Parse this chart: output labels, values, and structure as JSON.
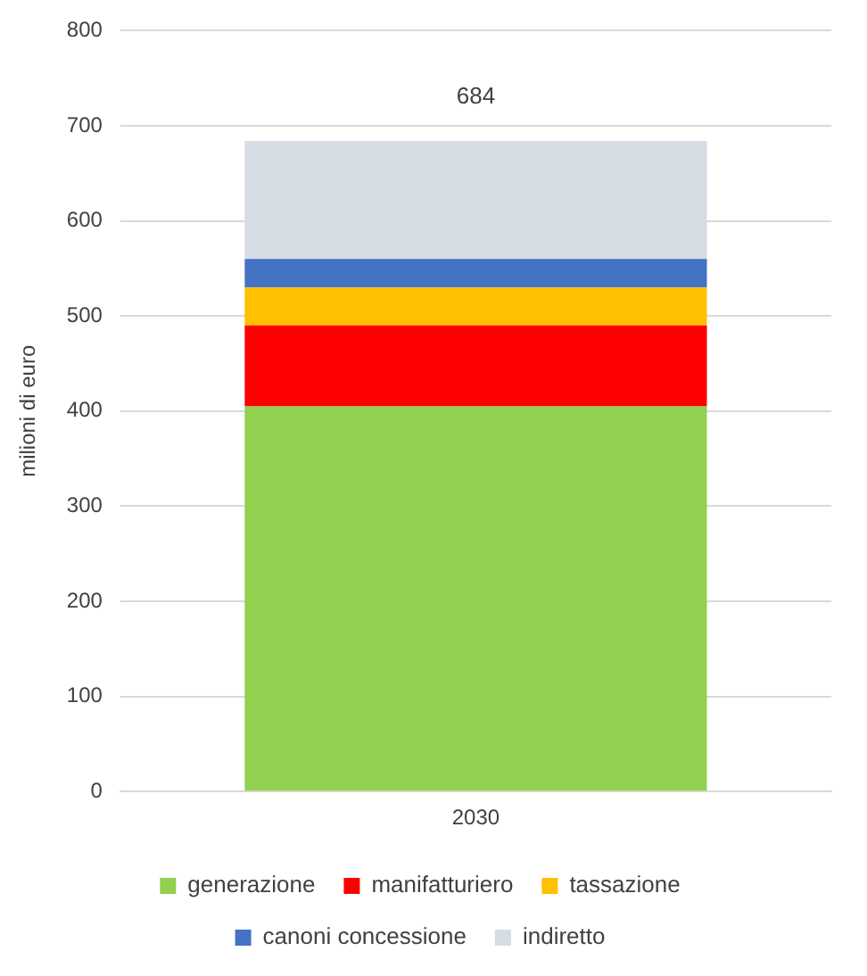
{
  "chart_data": {
    "type": "bar",
    "stacked": true,
    "ylabel": "milioni di euro",
    "categories": [
      "2030"
    ],
    "series": [
      {
        "name": "generazione",
        "color": "#92d050",
        "values": [
          405
        ]
      },
      {
        "name": "manifatturiero",
        "color": "#ff0000",
        "values": [
          85
        ]
      },
      {
        "name": "tassazione",
        "color": "#ffc000",
        "values": [
          40
        ]
      },
      {
        "name": "canoni concessione",
        "color": "#4472c4",
        "values": [
          30
        ]
      },
      {
        "name": "indiretto",
        "color": "#d6dce4",
        "values": [
          124
        ]
      }
    ],
    "totals": [
      "684"
    ],
    "ylim": [
      0,
      800
    ],
    "yticks": [
      0,
      100,
      200,
      300,
      400,
      500,
      600,
      700,
      800
    ],
    "grid": "y",
    "legend": "bottom"
  }
}
